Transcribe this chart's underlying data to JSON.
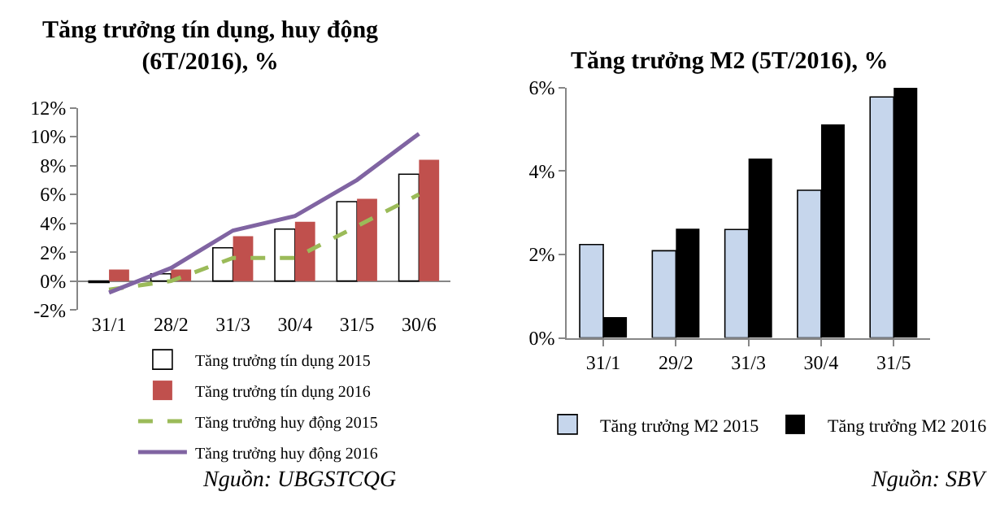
{
  "chart_data": [
    {
      "type": "bar",
      "title": "Tăng trưởng tín dụng, huy động\n(6T/2016), %",
      "categories": [
        "31/1",
        "28/2",
        "31/3",
        "30/4",
        "31/5",
        "30/6"
      ],
      "series": [
        {
          "name": "Tăng trưởng tín dụng 2015",
          "color": "#ffffff",
          "values": [
            -0.1,
            0.5,
            2.3,
            3.6,
            5.5,
            7.4
          ]
        },
        {
          "name": "Tăng trưởng tín dụng 2016",
          "color": "#c0504d",
          "values": [
            0.8,
            0.8,
            3.1,
            4.1,
            5.7,
            8.4
          ]
        },
        {
          "name": "Tăng trưởng huy động 2015",
          "type": "line",
          "line_style": "dashed",
          "color": "#9bbb59",
          "values": [
            -0.6,
            0.0,
            1.6,
            1.6,
            3.8,
            6.0
          ]
        },
        {
          "name": "Tăng trưởng huy động 2016",
          "type": "line",
          "line_style": "solid",
          "color": "#8064a2",
          "values": [
            -0.8,
            0.9,
            3.5,
            4.5,
            7.0,
            10.2
          ]
        }
      ],
      "ylim": [
        -2,
        12
      ],
      "yticks": [
        {
          "value": -2,
          "label": "-2%"
        },
        {
          "value": 0,
          "label": "0%"
        },
        {
          "value": 2,
          "label": "2%"
        },
        {
          "value": 4,
          "label": "4%"
        },
        {
          "value": 6,
          "label": "6%"
        },
        {
          "value": 8,
          "label": "8%"
        },
        {
          "value": 10,
          "label": "10%"
        },
        {
          "value": 12,
          "label": "12%"
        }
      ],
      "grid": false,
      "legend": "bottom",
      "marker": "none",
      "annotations": [
        "Nguồn: UBGSTCQG"
      ]
    },
    {
      "type": "bar",
      "title": "Tăng trưởng M2 (5T/2016), %",
      "categories": [
        "31/1",
        "29/2",
        "31/3",
        "30/4",
        "31/5"
      ],
      "series": [
        {
          "name": "Tăng trưởng M2 2015",
          "color": "#c6d6ec",
          "values": [
            2.24,
            2.09,
            2.6,
            3.54,
            5.78
          ]
        },
        {
          "name": "Tăng trưởng M2 2016",
          "color": "#000000",
          "values": [
            0.5,
            2.62,
            4.3,
            5.12,
            6.0
          ]
        }
      ],
      "ylim": [
        0,
        6
      ],
      "yticks": [
        {
          "value": 0,
          "label": "0%"
        },
        {
          "value": 2,
          "label": "2%"
        },
        {
          "value": 4,
          "label": "4%"
        },
        {
          "value": 6,
          "label": "6%"
        }
      ],
      "grid": false,
      "legend": "bottom",
      "annotations": [
        "Nguồn: SBV"
      ]
    }
  ]
}
